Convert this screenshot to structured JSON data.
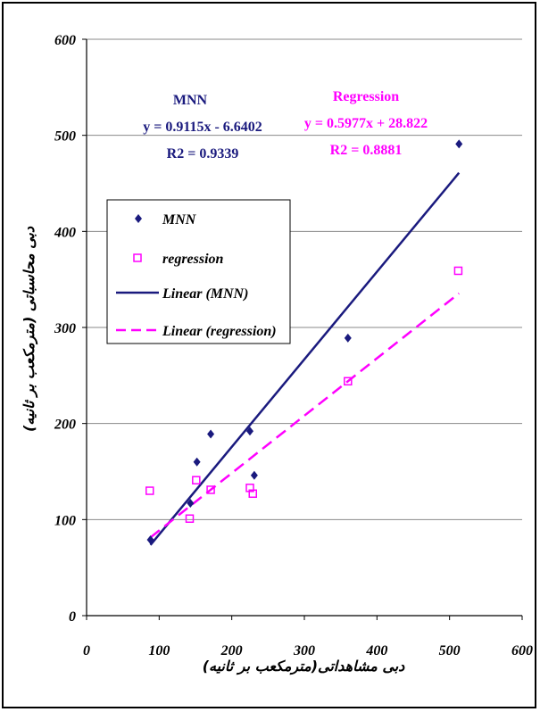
{
  "chart_data": {
    "type": "scatter",
    "xlabel": "دبی مشاهداتی(مترمکعب بر ثانیه)",
    "ylabel": "دبی محاسباتی (مترمکعب بر ثانیه)",
    "xlim": [
      0,
      600
    ],
    "ylim": [
      0,
      600
    ],
    "xticks": [
      "0",
      "100",
      "200",
      "300",
      "400",
      "500",
      "600"
    ],
    "yticks": [
      "0",
      "100",
      "200",
      "300",
      "400",
      "500",
      "600"
    ],
    "grid": "horizontal",
    "legend_position": "left",
    "series": [
      {
        "name": "MNN",
        "marker": "diamond",
        "color": "#1a1a7e",
        "points": [
          [
            88,
            79
          ],
          [
            143,
            117
          ],
          [
            152,
            160
          ],
          [
            171,
            189
          ],
          [
            225,
            192
          ],
          [
            231,
            146
          ],
          [
            360,
            289
          ],
          [
            513,
            491
          ]
        ]
      },
      {
        "name": "regression",
        "marker": "square-open",
        "color": "#ff00ff",
        "points": [
          [
            87,
            130
          ],
          [
            142,
            101
          ],
          [
            151,
            141
          ],
          [
            171,
            131
          ],
          [
            225,
            133
          ],
          [
            229,
            127
          ],
          [
            360,
            244
          ],
          [
            512,
            359
          ]
        ]
      }
    ],
    "trendlines": [
      {
        "name": "Linear (MNN)",
        "slope": 0.9115,
        "intercept": -6.6402,
        "x_range": [
          88,
          513
        ],
        "color": "#1a1a7e",
        "dash": "solid"
      },
      {
        "name": "Linear (regression)",
        "slope": 0.5977,
        "intercept": 28.822,
        "x_range": [
          88,
          513
        ],
        "color": "#ff00ff",
        "dash": "dashed"
      }
    ],
    "annotations": {
      "mnn": {
        "title": "MNN",
        "equation": "y = 0.9115x - 6.6402",
        "r2": "R2 = 0.9339",
        "color": "#1a1a7e"
      },
      "regression": {
        "title": "Regression",
        "equation": "y = 0.5977x + 28.822",
        "r2": "R2 = 0.8881",
        "color": "#ff00ff"
      }
    },
    "legend": [
      "MNN",
      "regression",
      "Linear (MNN)",
      "Linear (regression)"
    ]
  }
}
